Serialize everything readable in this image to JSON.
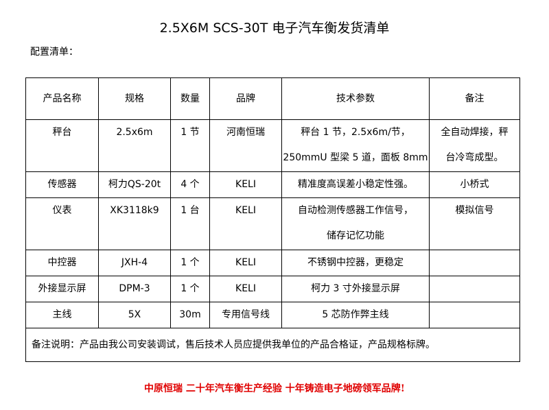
{
  "title": "2.5X6M SCS-30T 电子汽车衡发货清单",
  "subtitle": "配置清单：",
  "headers": [
    "产品名称",
    "规格",
    "数量",
    "品牌",
    "技术参数",
    "备注"
  ],
  "rows": [
    [
      "秤台",
      "2.5x6m",
      "1 节",
      "河南恒瑞",
      "秤台 1 节，2.5x6m/节，\n250mmU 型梁 5 道，面板 8mm",
      "全自动焊接，秤\n台冷弯成型。"
    ],
    [
      "传感器",
      "柯力QS-20t",
      "4 个",
      "KELI",
      "精准度高误差小稳定性强。",
      "小桥式"
    ],
    [
      "仪表",
      "XK3118k9",
      "1 台",
      "KELI",
      "自动检测传感器工作信号，\n储存记忆功能",
      "模拟信号"
    ],
    [
      "中控器",
      "JXH-4",
      "1 个",
      "KELI",
      "不锈钢中控器，更稳定",
      ""
    ],
    [
      "外接显示屏",
      "DPM-3",
      "1 个",
      "KELI",
      "柯力 3 寸外接显示屏",
      ""
    ],
    [
      "主线",
      "5X",
      "30m",
      "专用信号线",
      "5 芯防作弊主线",
      ""
    ]
  ],
  "note": "备注说明：产品由我公司安装调试，售后技术人员应提供我单位的产品合格证，产品规格标牌。",
  "footer": "中原恒瑞 二十年汽车衡生产经验 十年铸造电子地磅领军品牌!"
}
